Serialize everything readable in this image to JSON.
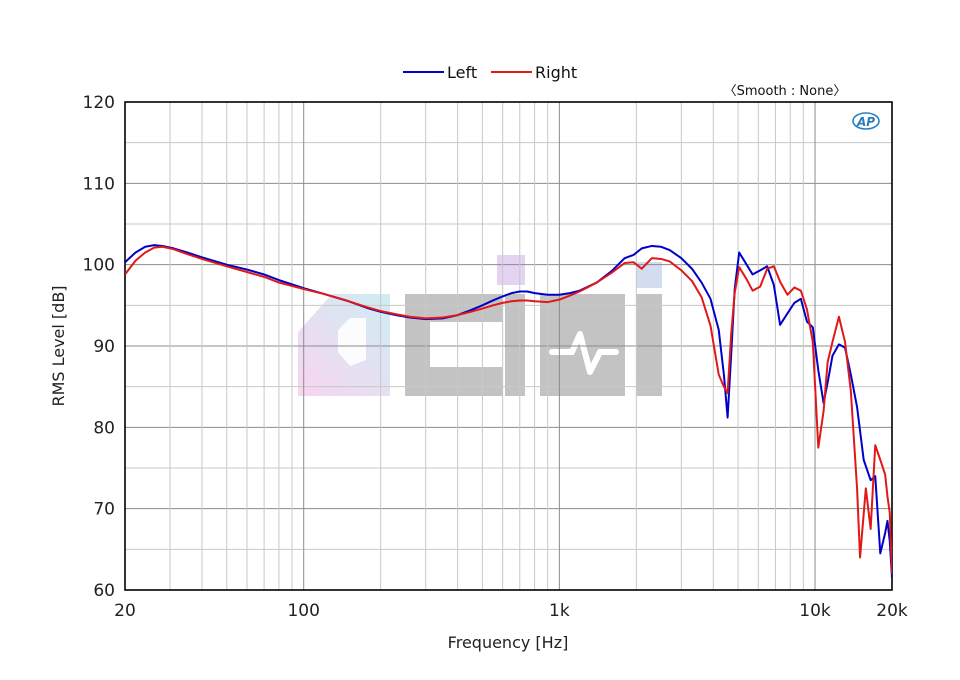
{
  "chart_data": {
    "type": "line",
    "title": "",
    "xlabel": "Frequency [Hz]",
    "ylabel": "RMS Level [dB]",
    "xscale": "log",
    "xlim": [
      20,
      20000
    ],
    "ylim": [
      60,
      120
    ],
    "xticks": [
      {
        "value": 20,
        "label": "20"
      },
      {
        "value": 100,
        "label": "100"
      },
      {
        "value": 1000,
        "label": "1k"
      },
      {
        "value": 10000,
        "label": "10k"
      },
      {
        "value": 20000,
        "label": "20k"
      }
    ],
    "yticks": [
      60,
      70,
      80,
      90,
      100,
      110,
      120
    ],
    "grid": true,
    "legend_position": "top-center",
    "annotation": "〈Smooth : None〉",
    "series": [
      {
        "name": "Left",
        "color": "#0000c8",
        "points": [
          [
            20,
            100.3
          ],
          [
            22,
            101.5
          ],
          [
            24,
            102.2
          ],
          [
            26,
            102.4
          ],
          [
            28,
            102.3
          ],
          [
            31,
            102.0
          ],
          [
            35,
            101.5
          ],
          [
            40,
            100.9
          ],
          [
            50,
            100.0
          ],
          [
            60,
            99.4
          ],
          [
            70,
            98.8
          ],
          [
            80,
            98.1
          ],
          [
            100,
            97.1
          ],
          [
            120,
            96.4
          ],
          [
            150,
            95.5
          ],
          [
            180,
            94.6
          ],
          [
            200,
            94.2
          ],
          [
            230,
            93.8
          ],
          [
            260,
            93.5
          ],
          [
            300,
            93.3
          ],
          [
            350,
            93.4
          ],
          [
            400,
            93.8
          ],
          [
            450,
            94.4
          ],
          [
            500,
            95.0
          ],
          [
            550,
            95.6
          ],
          [
            600,
            96.1
          ],
          [
            650,
            96.5
          ],
          [
            700,
            96.7
          ],
          [
            750,
            96.7
          ],
          [
            800,
            96.5
          ],
          [
            900,
            96.3
          ],
          [
            1000,
            96.3
          ],
          [
            1100,
            96.5
          ],
          [
            1200,
            96.8
          ],
          [
            1400,
            97.8
          ],
          [
            1600,
            99.2
          ],
          [
            1800,
            100.8
          ],
          [
            1950,
            101.2
          ],
          [
            2100,
            102.0
          ],
          [
            2300,
            102.3
          ],
          [
            2500,
            102.2
          ],
          [
            2700,
            101.8
          ],
          [
            3000,
            100.8
          ],
          [
            3300,
            99.5
          ],
          [
            3600,
            97.8
          ],
          [
            3900,
            95.8
          ],
          [
            4200,
            92.0
          ],
          [
            4400,
            86.5
          ],
          [
            4550,
            81.2
          ],
          [
            4700,
            89.0
          ],
          [
            4850,
            97.0
          ],
          [
            5050,
            101.5
          ],
          [
            5400,
            100.0
          ],
          [
            5700,
            98.8
          ],
          [
            6100,
            99.3
          ],
          [
            6500,
            99.8
          ],
          [
            6900,
            97.5
          ],
          [
            7300,
            92.6
          ],
          [
            7800,
            94.0
          ],
          [
            8300,
            95.3
          ],
          [
            8800,
            95.8
          ],
          [
            9300,
            93.0
          ],
          [
            9800,
            92.3
          ],
          [
            10300,
            87.0
          ],
          [
            10800,
            83.0
          ],
          [
            11200,
            85.5
          ],
          [
            11700,
            88.8
          ],
          [
            12400,
            90.2
          ],
          [
            13100,
            89.8
          ],
          [
            13800,
            86.5
          ],
          [
            14600,
            82.5
          ],
          [
            15500,
            76.0
          ],
          [
            16500,
            73.5
          ],
          [
            17200,
            74.0
          ],
          [
            18000,
            64.5
          ],
          [
            18800,
            67.0
          ],
          [
            19200,
            68.5
          ],
          [
            19600,
            66.0
          ],
          [
            20000,
            61.5
          ]
        ]
      },
      {
        "name": "Right",
        "color": "#e01818",
        "points": [
          [
            20,
            98.8
          ],
          [
            22,
            100.5
          ],
          [
            24,
            101.5
          ],
          [
            26,
            102.1
          ],
          [
            28,
            102.2
          ],
          [
            31,
            101.9
          ],
          [
            35,
            101.3
          ],
          [
            40,
            100.7
          ],
          [
            50,
            99.8
          ],
          [
            60,
            99.1
          ],
          [
            70,
            98.5
          ],
          [
            80,
            97.8
          ],
          [
            100,
            97.0
          ],
          [
            120,
            96.4
          ],
          [
            150,
            95.5
          ],
          [
            180,
            94.7
          ],
          [
            200,
            94.3
          ],
          [
            230,
            93.9
          ],
          [
            260,
            93.6
          ],
          [
            300,
            93.4
          ],
          [
            350,
            93.5
          ],
          [
            400,
            93.8
          ],
          [
            450,
            94.2
          ],
          [
            500,
            94.6
          ],
          [
            550,
            95.0
          ],
          [
            600,
            95.3
          ],
          [
            650,
            95.5
          ],
          [
            700,
            95.6
          ],
          [
            750,
            95.6
          ],
          [
            800,
            95.5
          ],
          [
            900,
            95.4
          ],
          [
            1000,
            95.7
          ],
          [
            1100,
            96.2
          ],
          [
            1200,
            96.7
          ],
          [
            1400,
            97.8
          ],
          [
            1600,
            99.0
          ],
          [
            1800,
            100.2
          ],
          [
            1950,
            100.3
          ],
          [
            2100,
            99.5
          ],
          [
            2300,
            100.8
          ],
          [
            2500,
            100.7
          ],
          [
            2700,
            100.4
          ],
          [
            3000,
            99.3
          ],
          [
            3300,
            98.0
          ],
          [
            3600,
            96.0
          ],
          [
            3900,
            92.5
          ],
          [
            4200,
            86.5
          ],
          [
            4400,
            85.0
          ],
          [
            4550,
            84.2
          ],
          [
            4700,
            91.5
          ],
          [
            4850,
            96.5
          ],
          [
            5050,
            99.7
          ],
          [
            5400,
            98.2
          ],
          [
            5700,
            96.8
          ],
          [
            6100,
            97.3
          ],
          [
            6500,
            99.5
          ],
          [
            6900,
            99.8
          ],
          [
            7300,
            97.9
          ],
          [
            7800,
            96.3
          ],
          [
            8300,
            97.2
          ],
          [
            8800,
            96.8
          ],
          [
            9300,
            94.5
          ],
          [
            9800,
            90.5
          ],
          [
            10300,
            77.5
          ],
          [
            10800,
            82.0
          ],
          [
            11200,
            88.0
          ],
          [
            11700,
            90.5
          ],
          [
            12400,
            93.6
          ],
          [
            13100,
            90.5
          ],
          [
            13800,
            84.5
          ],
          [
            14600,
            72.5
          ],
          [
            15000,
            64.0
          ],
          [
            15800,
            72.5
          ],
          [
            16500,
            67.5
          ],
          [
            17200,
            77.8
          ],
          [
            18000,
            76.0
          ],
          [
            18800,
            74.2
          ],
          [
            19200,
            71.5
          ],
          [
            19600,
            69.5
          ],
          [
            20000,
            62.0
          ]
        ]
      }
    ]
  }
}
